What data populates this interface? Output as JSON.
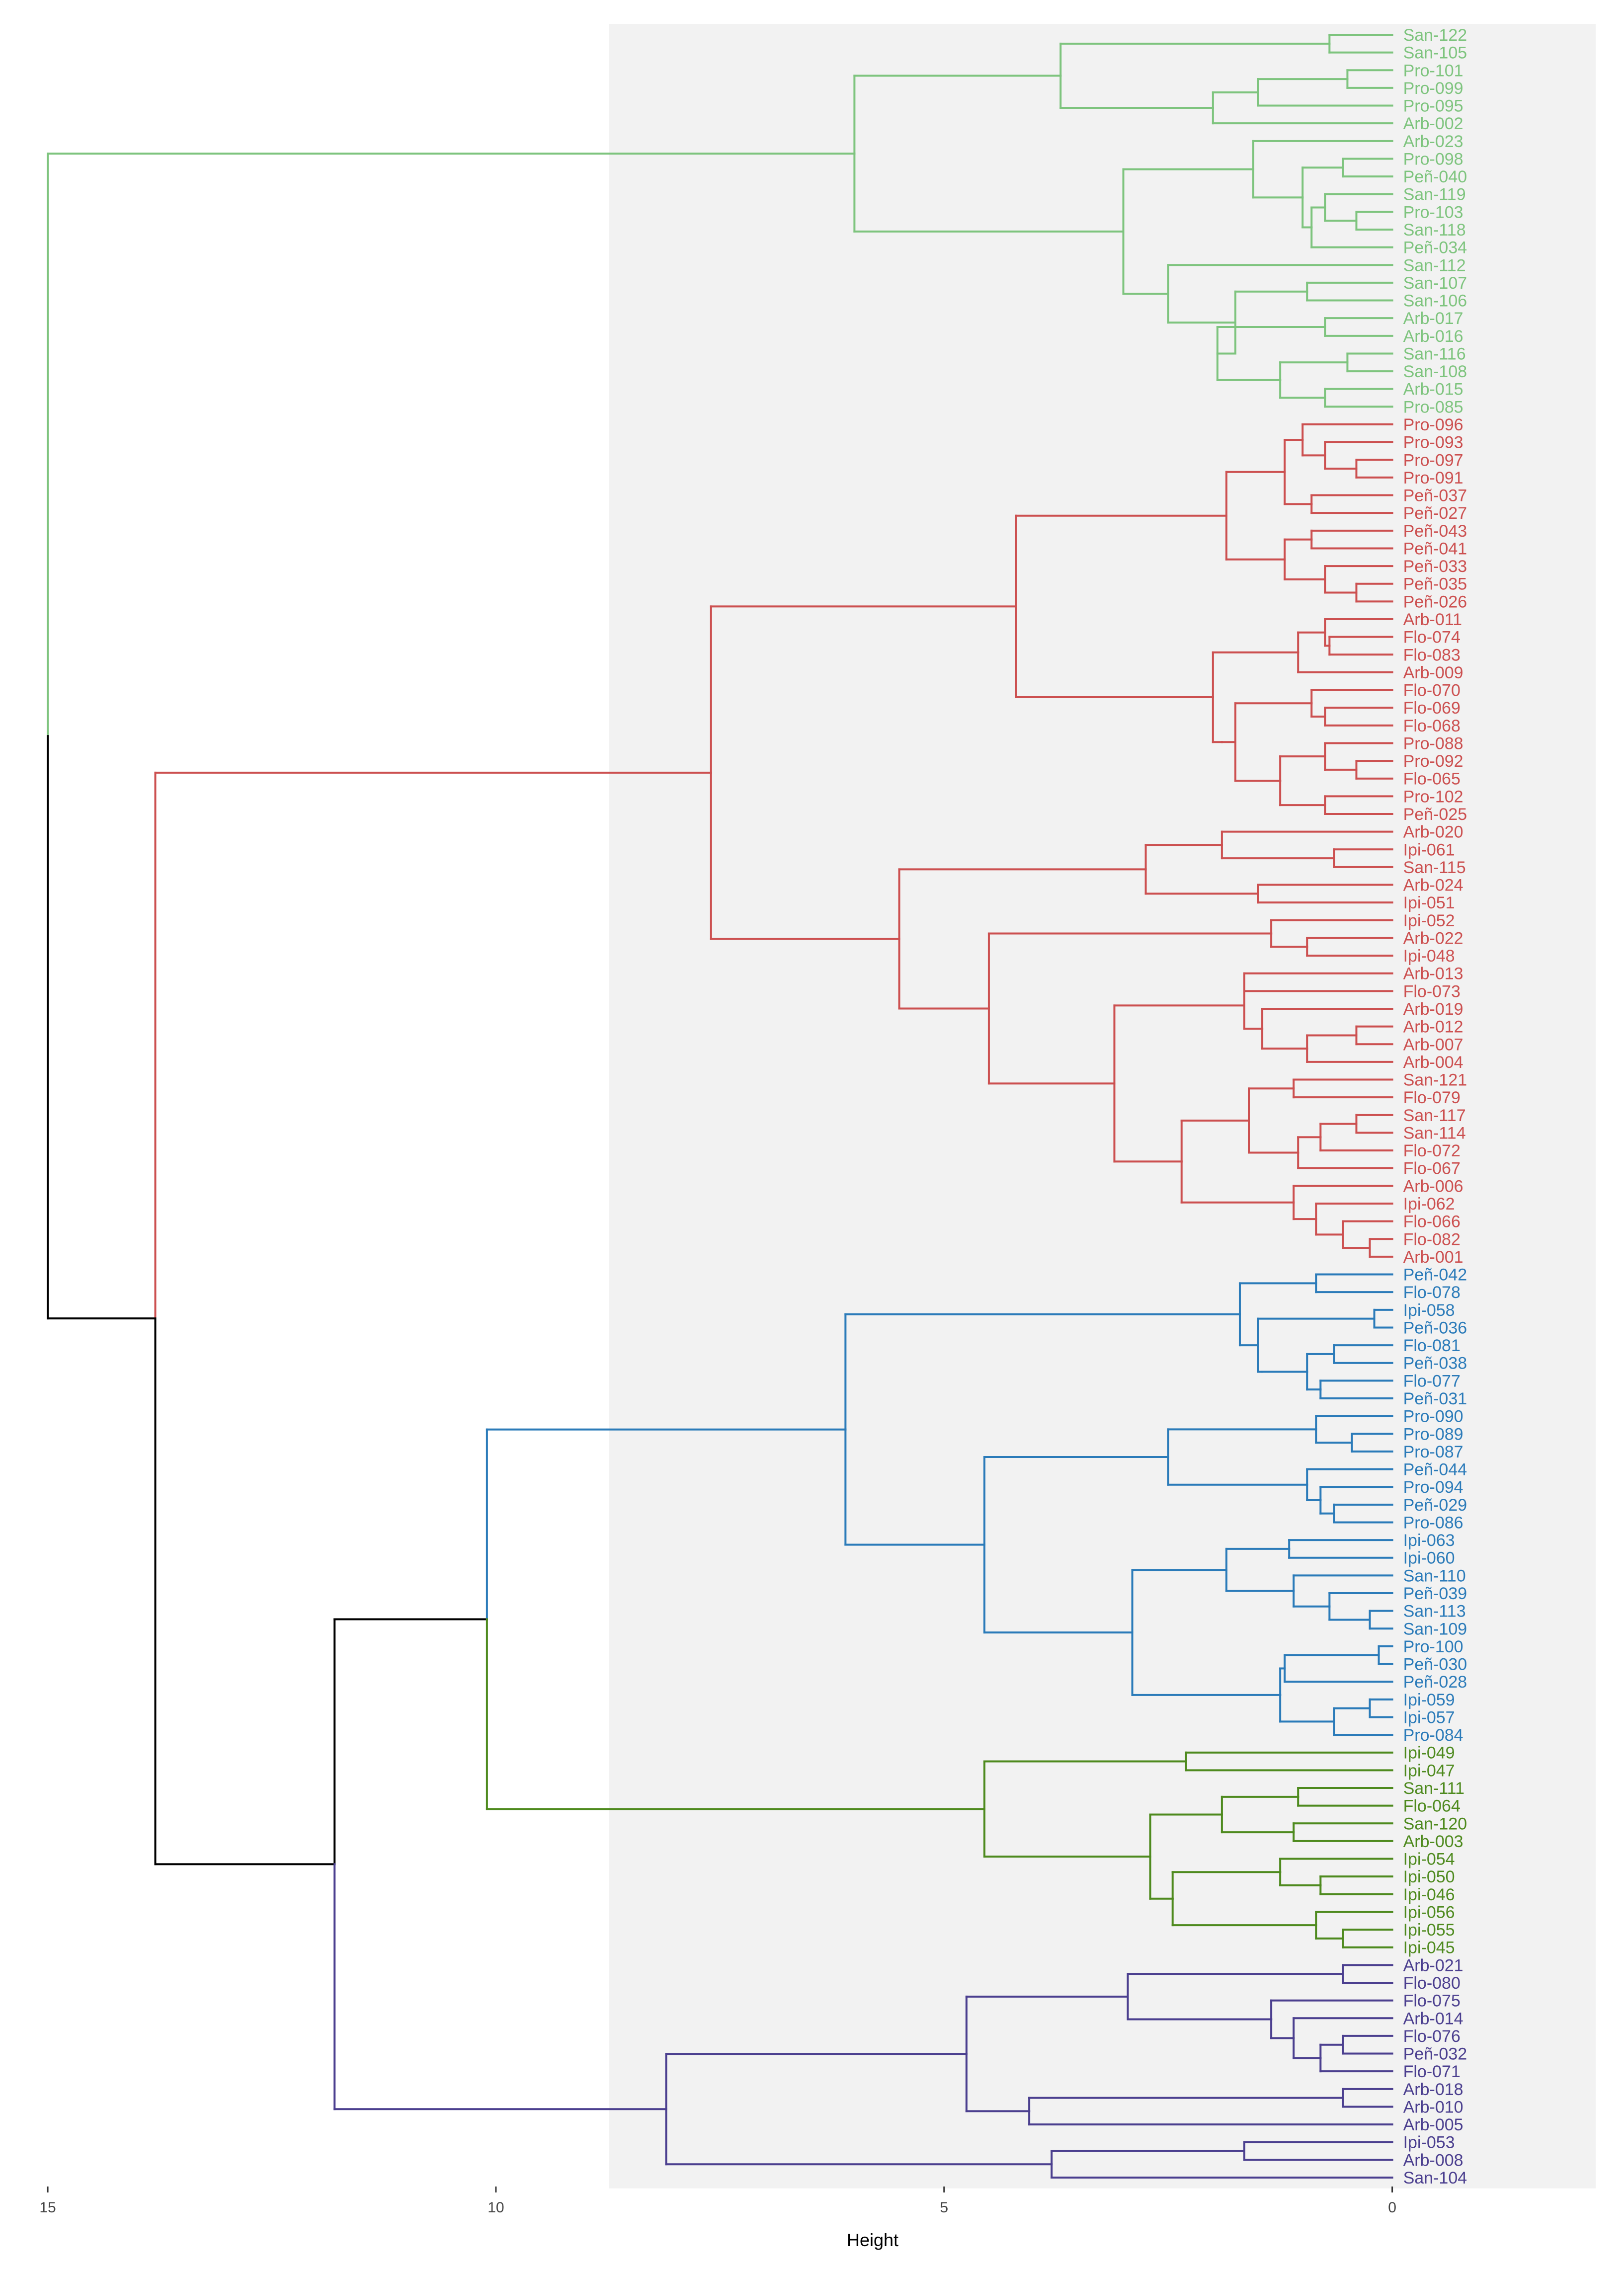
{
  "chart_data": {
    "type": "dendrogram",
    "title": "",
    "xlabel": "Height",
    "ylabel": "",
    "xlim": [
      15.2,
      -1.1
    ],
    "x_ticks": [
      15,
      10,
      5,
      0
    ],
    "x_tick_labels": [
      "15",
      "10",
      "5",
      "0"
    ],
    "root_color": "#000000",
    "clusters": [
      {
        "name": "cluster-1",
        "color": "#7ec47e",
        "labels": [
          "San-122",
          "San-105",
          "Pro-101",
          "Pro-099",
          "Pro-095",
          "Arb-002",
          "Arb-023",
          "Pro-098",
          "Peñ-040",
          "San-119",
          "Pro-103",
          "San-118",
          "Peñ-034",
          "San-112",
          "San-107",
          "San-106",
          "Arb-017",
          "Arb-016",
          "San-116",
          "San-108",
          "Arb-015",
          "Pro-085"
        ]
      },
      {
        "name": "cluster-2",
        "color": "#cc5050",
        "labels": [
          "Pro-096",
          "Pro-093",
          "Pro-097",
          "Pro-091",
          "Peñ-037",
          "Peñ-027",
          "Peñ-043",
          "Peñ-041",
          "Peñ-033",
          "Peñ-035",
          "Peñ-026",
          "Arb-011",
          "Flo-074",
          "Flo-083",
          "Arb-009",
          "Flo-070",
          "Flo-069",
          "Flo-068",
          "Pro-088",
          "Pro-092",
          "Flo-065",
          "Pro-102",
          "Peñ-025",
          "Arb-020",
          "Ipi-061",
          "San-115",
          "Arb-024",
          "Ipi-051",
          "Ipi-052",
          "Arb-022",
          "Ipi-048",
          "Arb-013",
          "Flo-073",
          "Arb-019",
          "Arb-012",
          "Arb-007",
          "Arb-004",
          "San-121",
          "Flo-079",
          "San-117",
          "San-114",
          "Flo-072",
          "Flo-067",
          "Arb-006",
          "Ipi-062",
          "Flo-066",
          "Flo-082",
          "Arb-001"
        ]
      },
      {
        "name": "cluster-3",
        "color": "#2b7bb9",
        "labels": [
          "Peñ-042",
          "Flo-078",
          "Ipi-058",
          "Peñ-036",
          "Flo-081",
          "Peñ-038",
          "Flo-077",
          "Peñ-031",
          "Pro-090",
          "Pro-089",
          "Pro-087",
          "Peñ-044",
          "Pro-094",
          "Peñ-029",
          "Pro-086",
          "Ipi-063",
          "Ipi-060",
          "San-110",
          "Peñ-039",
          "San-113",
          "San-109",
          "Pro-100",
          "Peñ-030",
          "Peñ-028",
          "Ipi-059",
          "Ipi-057",
          "Pro-084"
        ]
      },
      {
        "name": "cluster-4",
        "color": "#4e8a1e",
        "labels": [
          "Ipi-049",
          "Ipi-047",
          "San-111",
          "Flo-064",
          "San-120",
          "Arb-003",
          "Ipi-054",
          "Ipi-050",
          "Ipi-046",
          "Ipi-056",
          "Ipi-055",
          "Ipi-045"
        ]
      },
      {
        "name": "cluster-5",
        "color": "#4b3f8f",
        "labels": [
          "Arb-021",
          "Flo-080",
          "Flo-075",
          "Arb-014",
          "Flo-076",
          "Peñ-032",
          "Flo-071",
          "Arb-018",
          "Arb-010",
          "Arb-005",
          "Ipi-053",
          "Arb-008",
          "San-104"
        ]
      }
    ],
    "tree": [
      15.0,
      [
        6.0,
        [
          3.7,
          [
            0.7,
            "San-122",
            "San-105"
          ],
          [
            2.0,
            [
              1.5,
              [
                0.5,
                "Pro-101",
                "Pro-099"
              ],
              "Pro-095"
            ],
            "Arb-002"
          ]
        ],
        [
          3.0,
          [
            1.55,
            "Arb-023",
            [
              1.0,
              [
                0.55,
                "Pro-098",
                "Peñ-040"
              ],
              [
                0.9,
                [
                  0.75,
                  "San-119",
                  [
                    0.4,
                    "Pro-103",
                    "San-118"
                  ]
                ],
                "Peñ-034"
              ]
            ]
          ],
          [
            2.5,
            "San-112",
            [
              1.75,
              [
                0.95,
                "San-107",
                "San-106"
              ],
              [
                1.95,
                [
                  0.75,
                  "Arb-017",
                  "Arb-016"
                ],
                [
                  1.25,
                  [
                    0.5,
                    "San-116",
                    "San-108"
                  ],
                  [
                    0.75,
                    "Arb-015",
                    "Pro-085"
                  ]
                ]
              ]
            ]
          ]
        ]
      ],
      [
        13.8,
        [
          7.6,
          [
            4.2,
            [
              1.85,
              [
                1.2,
                [
                  1.0,
                  "Pro-096",
                  [
                    0.75,
                    "Pro-093",
                    [
                      0.4,
                      "Pro-097",
                      "Pro-091"
                    ]
                  ]
                ],
                [
                  0.9,
                  "Peñ-037",
                  "Peñ-027"
                ]
              ],
              [
                1.2,
                [
                  0.9,
                  "Peñ-043",
                  "Peñ-041"
                ],
                [
                  0.75,
                  "Peñ-033",
                  [
                    0.4,
                    "Peñ-035",
                    "Peñ-026"
                  ]
                ]
              ]
            ],
            [
              2.0,
              [
                1.05,
                [
                  0.75,
                  "Arb-011",
                  [
                    0.7,
                    "Flo-074",
                    "Flo-083"
                  ]
                ],
                "Arb-009"
              ],
              [
                1.9,
                [
                  1.75,
                  [
                    0.9,
                    "Flo-070",
                    [
                      0.75,
                      "Flo-069",
                      "Flo-068"
                    ]
                  ],
                  [
                    1.25,
                    [
                      0.75,
                      "Pro-088",
                      [
                        0.4,
                        "Pro-092",
                        "Flo-065"
                      ]
                    ],
                    [
                      0.75,
                      "Pro-102",
                      "Peñ-025"
                    ]
                  ]
                ]
              ]
            ]
          ],
          [
            5.5,
            [
              2.75,
              [
                1.9,
                "Arb-020",
                [
                  0.65,
                  "Ipi-061",
                  "San-115"
                ]
              ],
              [
                1.5,
                "Arb-024",
                "Ipi-051"
              ]
            ],
            [
              4.5,
              [
                1.35,
                "Ipi-052",
                [
                  0.95,
                  "Arb-022",
                  "Ipi-048"
                ]
              ],
              [
                3.1,
                [
                  1.65,
                  [
                    1.65,
                    "Arb-013",
                    "Flo-073"
                  ],
                  [
                    1.45,
                    "Arb-019",
                    [
                      0.95,
                      [
                        0.4,
                        "Arb-012",
                        "Arb-007"
                      ],
                      "Arb-004"
                    ]
                  ]
                ],
                [
                  2.35,
                  [
                    1.6,
                    [
                      1.1,
                      "San-121",
                      "Flo-079"
                    ],
                    [
                      1.05,
                      [
                        0.8,
                        [
                          0.4,
                          "San-117",
                          "San-114"
                        ],
                        "Flo-072"
                      ],
                      "Flo-067"
                    ]
                  ],
                  [
                    1.1,
                    "Arb-006",
                    [
                      0.85,
                      "Ipi-062",
                      [
                        0.55,
                        "Flo-066",
                        [
                          0.25,
                          "Flo-082",
                          "Arb-001"
                        ]
                      ]
                    ]
                  ]
                ]
              ]
            ]
          ]
        ],
        [
          11.8,
          [
            10.1,
            [
              6.1,
              [
                1.7,
                [
                  0.85,
                  "Peñ-042",
                  "Flo-078"
                ],
                [
                  1.5,
                  [
                    0.2,
                    "Ipi-058",
                    "Peñ-036"
                  ],
                  [
                    1.45,
                    [
                      0.95,
                      [
                        0.65,
                        "Flo-081",
                        "Peñ-038"
                      ],
                      [
                        0.8,
                        "Flo-077",
                        "Peñ-031"
                      ]
                    ]
                  ]
                ]
              ],
              [
                4.55,
                [
                  2.5,
                  [
                    0.85,
                    "Pro-090",
                    [
                      0.45,
                      "Pro-089",
                      "Pro-087"
                    ]
                  ],
                  [
                    0.95,
                    "Peñ-044",
                    [
                      0.8,
                      "Pro-094",
                      [
                        0.65,
                        "Peñ-029",
                        "Pro-086"
                      ]
                    ]
                  ]
                ],
                [
                  2.9,
                  [
                    1.85,
                    [
                      1.15,
                      "Ipi-063",
                      "Ipi-060"
                    ],
                    [
                      1.1,
                      "San-110",
                      [
                        0.7,
                        "Peñ-039",
                        [
                          0.25,
                          "San-113",
                          "San-109"
                        ]
                      ]
                    ]
                  ],
                  [
                    1.25,
                    [
                      1.2,
                      [
                        0.15,
                        "Pro-100",
                        "Peñ-030"
                      ],
                      "Peñ-028"
                    ],
                    [
                      0.65,
                      [
                        0.25,
                        "Ipi-059",
                        "Ipi-057"
                      ],
                      "Pro-084"
                    ]
                  ]
                ]
              ]
            ],
            [
              4.55,
              [
                2.3,
                "Ipi-049",
                "Ipi-047"
              ],
              [
                2.7,
                [
                  1.9,
                  [
                    1.05,
                    "San-111",
                    "Flo-064"
                  ],
                  [
                    1.1,
                    "San-120",
                    "Arb-003"
                  ]
                ],
                [
                  2.45,
                  [
                    1.25,
                    "Ipi-054",
                    [
                      0.8,
                      "Ipi-050",
                      "Ipi-046"
                    ]
                  ],
                  [
                    0.85,
                    "Ipi-056",
                    [
                      0.55,
                      "Ipi-055",
                      "Ipi-045"
                    ]
                  ]
                ]
              ]
            ]
          ],
          [
            8.1,
            [
              4.75,
              [
                2.95,
                [
                  0.55,
                  "Arb-021",
                  "Flo-080"
                ],
                [
                  1.35,
                  "Flo-075",
                  [
                    1.1,
                    "Arb-014",
                    [
                      0.8,
                      [
                        0.55,
                        "Flo-076",
                        "Peñ-032"
                      ],
                      "Flo-071"
                    ]
                  ]
                ]
              ],
              [
                4.05,
                [
                  0.55,
                  "Arb-018",
                  "Arb-010"
                ],
                "Arb-005"
              ]
            ],
            [
              3.8,
              [
                1.65,
                "Ipi-053",
                "Arb-008"
              ],
              "San-104"
            ]
          ]
        ]
      ]
    ]
  }
}
